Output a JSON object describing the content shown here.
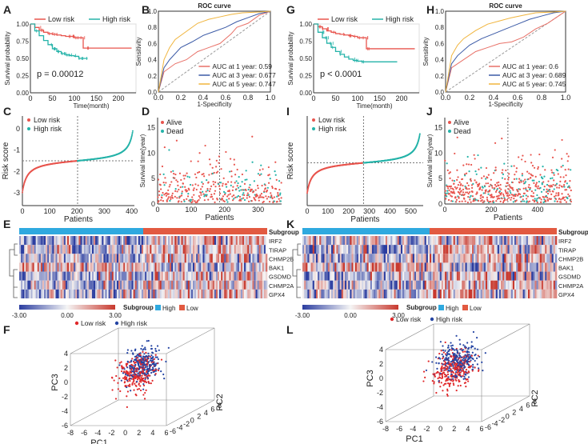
{
  "colors": {
    "low": "#e8554e",
    "high": "#25b3a9",
    "auc1": "#e87168",
    "auc3": "#3b5aa6",
    "auc5": "#f0b43c",
    "bandLow": "#e25a41",
    "bandHigh": "#2fa9df",
    "heatLow": "#2b3da0",
    "heatHigh": "#c8392e",
    "pcaLow": "#e0282a",
    "pcaHigh": "#2545a3"
  },
  "panel_labels": {
    "A": "A",
    "B": "B",
    "C": "C",
    "D": "D",
    "E": "E",
    "F": "F",
    "G": "G",
    "H": "H",
    "I": "I",
    "J": "J",
    "K": "K",
    "L": "L"
  },
  "legends": {
    "low_risk": "Low risk",
    "high_risk": "High risk",
    "alive": "Alive",
    "dead": "Dead",
    "subgroup": "Subgroup",
    "high": "High",
    "low": "Low"
  },
  "genes": [
    "IRF2",
    "TIRAP",
    "CHMP2B",
    "BAK1",
    "GSDMD",
    "CHMP2A",
    "GPX4"
  ],
  "chart_data": [
    {
      "id": "A",
      "type": "line",
      "title": "",
      "xlabel": "Time(month)",
      "ylabel": "Survival probability",
      "xticks": [
        "0",
        "50",
        "100",
        "150",
        "200"
      ],
      "yticks": [
        "0.00",
        "0.25",
        "0.50",
        "0.75",
        "1.00"
      ],
      "xlim": [
        0,
        240
      ],
      "ylim": [
        0,
        1
      ],
      "annotation": "p = 0.00012",
      "series": [
        {
          "name": "Low risk",
          "x": [
            0,
            10,
            20,
            30,
            40,
            50,
            60,
            70,
            80,
            90,
            100,
            110,
            120,
            230
          ],
          "y": [
            1,
            0.95,
            0.91,
            0.88,
            0.86,
            0.85,
            0.84,
            0.83,
            0.82,
            0.82,
            0.8,
            0.8,
            0.65,
            0.65
          ]
        },
        {
          "name": "High risk",
          "x": [
            0,
            10,
            20,
            30,
            40,
            50,
            60,
            70,
            80,
            90,
            100,
            110,
            120,
            130
          ],
          "y": [
            1,
            0.9,
            0.83,
            0.76,
            0.7,
            0.64,
            0.6,
            0.57,
            0.55,
            0.54,
            0.53,
            0.5,
            0.5,
            0.5
          ]
        }
      ]
    },
    {
      "id": "B",
      "type": "line",
      "title": "ROC curve",
      "xlabel": "1-Specificity",
      "ylabel": "Sensitivity",
      "xticks": [
        "0.0",
        "0.2",
        "0.4",
        "0.6",
        "0.8",
        "1.0"
      ],
      "yticks": [
        "0.0",
        "0.2",
        "0.4",
        "0.6",
        "0.8",
        "1.0"
      ],
      "xlim": [
        0,
        1
      ],
      "ylim": [
        0,
        1
      ],
      "legend": [
        "AUC at 1 year: 0.59",
        "AUC at 3 year: 0.677",
        "AUC at 5 year: 0.747"
      ],
      "series": [
        {
          "name": "1 year",
          "x": [
            0,
            0.05,
            0.15,
            0.25,
            0.35,
            0.45,
            0.55,
            0.65,
            0.7,
            0.8,
            0.9,
            1
          ],
          "y": [
            0,
            0.25,
            0.35,
            0.4,
            0.5,
            0.55,
            0.6,
            0.72,
            0.8,
            0.85,
            0.95,
            1
          ]
        },
        {
          "name": "3 year",
          "x": [
            0,
            0.05,
            0.1,
            0.2,
            0.3,
            0.4,
            0.5,
            0.6,
            0.7,
            0.8,
            0.9,
            1
          ],
          "y": [
            0,
            0.3,
            0.4,
            0.55,
            0.62,
            0.7,
            0.75,
            0.8,
            0.87,
            0.92,
            0.97,
            1
          ]
        },
        {
          "name": "5 year",
          "x": [
            0,
            0.05,
            0.1,
            0.15,
            0.25,
            0.35,
            0.45,
            0.55,
            0.65,
            0.75,
            0.9,
            1
          ],
          "y": [
            0,
            0.4,
            0.55,
            0.65,
            0.75,
            0.85,
            0.9,
            0.93,
            0.96,
            0.98,
            0.99,
            1
          ]
        }
      ]
    },
    {
      "id": "C",
      "type": "scatter",
      "xlabel": "Patients",
      "ylabel": "Risk score",
      "xticks": [
        "0",
        "100",
        "200",
        "300",
        "400"
      ],
      "yticks": [
        "-3",
        "-2",
        "-1",
        "0"
      ],
      "xlim": [
        0,
        410
      ],
      "ylim": [
        -3.6,
        0.6
      ],
      "cutoff_x": 202,
      "cutoff_y": -1.5,
      "n": 405
    },
    {
      "id": "D",
      "type": "scatter",
      "xlabel": "Patients",
      "ylabel": "Survival time(year)",
      "xticks": [
        "0",
        "100",
        "200",
        "300"
      ],
      "yticks": [
        "0",
        "5",
        "10",
        "15"
      ],
      "xlim": [
        0,
        370
      ],
      "ylim": [
        0,
        17
      ],
      "cutoff_x": 185,
      "n": 370
    },
    {
      "id": "E",
      "type": "heatmap",
      "rows": [
        "IRF2",
        "TIRAP",
        "CHMP2B",
        "BAK1",
        "GSDMD",
        "CHMP2A",
        "GPX4"
      ],
      "scale": [
        "-3.00",
        "0.00",
        "3.00"
      ],
      "groups": [
        "High",
        "Low"
      ]
    },
    {
      "id": "F",
      "type": "scatter",
      "xlabel": "PC1",
      "ylabel": "PC2",
      "zlabel": "PC3",
      "xticks": [
        "-8",
        "-6",
        "-4",
        "-2",
        "0",
        "2",
        "4",
        "6"
      ],
      "yticks": [
        "-6",
        "-4",
        "-2",
        "0",
        "2",
        "4",
        "6",
        "8"
      ],
      "zticks": [
        "-6",
        "-4",
        "-2",
        "0",
        "2",
        "4"
      ]
    },
    {
      "id": "G",
      "type": "line",
      "xlabel": "Time(month)",
      "ylabel": "Survival probability",
      "xticks": [
        "0",
        "50",
        "100",
        "150",
        "200"
      ],
      "yticks": [
        "0.00",
        "0.25",
        "0.50",
        "0.75",
        "1.00"
      ],
      "xlim": [
        0,
        240
      ],
      "ylim": [
        0,
        1
      ],
      "annotation": "p < 0.0001",
      "series": [
        {
          "name": "Low risk",
          "x": [
            0,
            10,
            20,
            30,
            40,
            50,
            60,
            70,
            80,
            90,
            100,
            110,
            120,
            230
          ],
          "y": [
            1,
            0.96,
            0.93,
            0.9,
            0.88,
            0.86,
            0.85,
            0.84,
            0.83,
            0.82,
            0.8,
            0.8,
            0.64,
            0.64
          ]
        },
        {
          "name": "High risk",
          "x": [
            0,
            10,
            20,
            30,
            40,
            50,
            60,
            70,
            80,
            90,
            100,
            110,
            120,
            190
          ],
          "y": [
            1,
            0.88,
            0.8,
            0.72,
            0.66,
            0.6,
            0.56,
            0.52,
            0.49,
            0.47,
            0.46,
            0.45,
            0.45,
            0.45
          ]
        }
      ]
    },
    {
      "id": "H",
      "type": "line",
      "title": "ROC curve",
      "xlabel": "1-Specificity",
      "ylabel": "Sensitivity",
      "xticks": [
        "0.0",
        "0.2",
        "0.4",
        "0.6",
        "0.8",
        "1.0"
      ],
      "yticks": [
        "0.0",
        "0.2",
        "0.4",
        "0.6",
        "0.8",
        "1.0"
      ],
      "xlim": [
        0,
        1
      ],
      "ylim": [
        0,
        1
      ],
      "legend": [
        "AUC at 1 year: 0.6",
        "AUC at 3 year: 0.689",
        "AUC at 5 year: 0.745"
      ],
      "series": [
        {
          "name": "1 year",
          "x": [
            0,
            0.05,
            0.15,
            0.25,
            0.35,
            0.45,
            0.55,
            0.65,
            0.75,
            0.85,
            0.95,
            1
          ],
          "y": [
            0,
            0.3,
            0.4,
            0.5,
            0.55,
            0.6,
            0.62,
            0.68,
            0.78,
            0.85,
            0.95,
            1
          ]
        },
        {
          "name": "3 year",
          "x": [
            0,
            0.05,
            0.1,
            0.2,
            0.3,
            0.4,
            0.5,
            0.6,
            0.7,
            0.8,
            0.9,
            1
          ],
          "y": [
            0,
            0.35,
            0.45,
            0.58,
            0.66,
            0.72,
            0.78,
            0.84,
            0.9,
            0.94,
            0.98,
            1
          ]
        },
        {
          "name": "5 year",
          "x": [
            0,
            0.05,
            0.1,
            0.15,
            0.25,
            0.35,
            0.45,
            0.55,
            0.65,
            0.75,
            0.9,
            1
          ],
          "y": [
            0,
            0.45,
            0.58,
            0.66,
            0.76,
            0.84,
            0.88,
            0.92,
            0.95,
            0.98,
            0.99,
            1
          ]
        }
      ]
    },
    {
      "id": "I",
      "type": "scatter",
      "xlabel": "Patients",
      "ylabel": "Risk score",
      "xticks": [
        "0",
        "100",
        "200",
        "300",
        "400",
        "500"
      ],
      "xlim": [
        0,
        560
      ],
      "ylim": [
        -3.6,
        0.8
      ],
      "cutoff_x": 272,
      "cutoff_y": -1.5,
      "n": 545
    },
    {
      "id": "J",
      "type": "scatter",
      "xlabel": "Patients",
      "ylabel": "Survival time(year)",
      "xticks": [
        "0",
        "200",
        "400"
      ],
      "yticks": [
        "0",
        "5",
        "10",
        "15"
      ],
      "xlim": [
        0,
        545
      ],
      "ylim": [
        0,
        17
      ],
      "cutoff_x": 272,
      "n": 545
    },
    {
      "id": "K",
      "type": "heatmap",
      "rows": [
        "IRF2",
        "TIRAP",
        "CHMP2B",
        "BAK1",
        "GSDMD",
        "CHMP2A",
        "GPX4"
      ],
      "scale": [
        "-3.00",
        "0.00",
        "3.00"
      ],
      "groups": [
        "High",
        "Low"
      ]
    },
    {
      "id": "L",
      "type": "scatter",
      "xlabel": "PC1",
      "ylabel": "PC2",
      "zlabel": "PC3",
      "xticks": [
        "-8",
        "-6",
        "-4",
        "-2",
        "0",
        "2",
        "4",
        "6"
      ],
      "yticks": [
        "-6",
        "-4",
        "-2",
        "0",
        "2",
        "4",
        "6",
        "8"
      ],
      "zticks": [
        "-6",
        "-4",
        "-2",
        "0",
        "2",
        "4"
      ]
    }
  ]
}
